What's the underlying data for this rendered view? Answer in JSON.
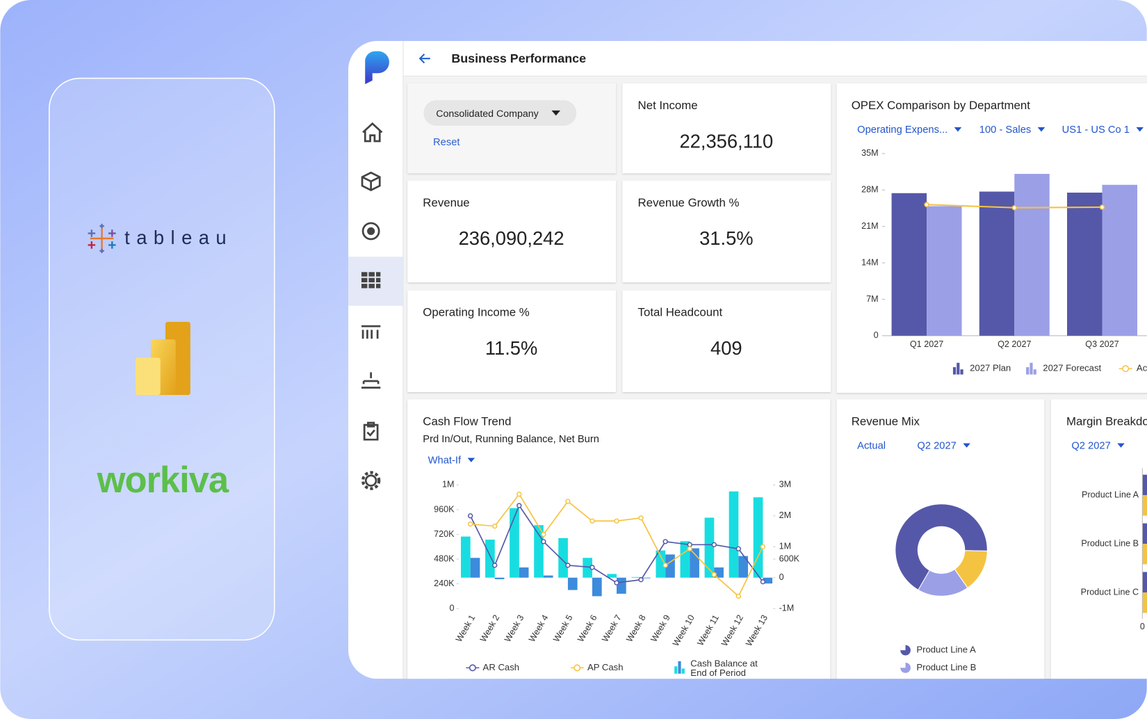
{
  "logos": {
    "tableau": "tableau",
    "workiva": "workiva"
  },
  "header": {
    "title": "Business Performance"
  },
  "filters": {
    "company": "Consolidated Company",
    "reset": "Reset"
  },
  "kpis": [
    {
      "label": "Net Income",
      "value": "22,356,110"
    },
    {
      "label": "Revenue",
      "value": "236,090,242"
    },
    {
      "label": "Revenue Growth %",
      "value": "31.5%"
    },
    {
      "label": "Operating Income %",
      "value": "11.5%"
    },
    {
      "label": "Total Headcount",
      "value": "409"
    }
  ],
  "opex": {
    "type": "bar",
    "title": "OPEX Comparison by Department",
    "filters": [
      "Operating Expens...",
      "100 - Sales",
      "US1 - US Co 1"
    ],
    "categories": [
      "Q1 2027",
      "Q2 2027",
      "Q3 2027"
    ],
    "ylim": [
      0,
      35000000
    ],
    "yticks": [
      0,
      {
        "value": 7000000,
        "label": "7M"
      },
      {
        "value": 14000000,
        "label": "14M"
      },
      {
        "value": 21000000,
        "label": "21M"
      },
      {
        "value": 28000000,
        "label": "28M"
      },
      {
        "value": 35000000,
        "label": "35M"
      }
    ],
    "series": [
      {
        "name": "2027 Plan",
        "type": "bar",
        "color": "#5558a8",
        "values": [
          27400000,
          27700000,
          27500000
        ]
      },
      {
        "name": "2027 Forecast",
        "type": "bar",
        "color": "#9b9fe6",
        "values": [
          24900000,
          31100000,
          29000000
        ]
      },
      {
        "name": "Actual",
        "type": "line",
        "color": "#f5c342",
        "values": [
          25200000,
          24600000,
          24700000
        ]
      }
    ]
  },
  "cash_flow": {
    "type": "bar",
    "title": "Cash Flow Trend",
    "subtitle": "Prd In/Out, Running Balance, Net Burn",
    "filter": "What-If",
    "categories": [
      "Week 1",
      "Week 2",
      "Week 3",
      "Week 4",
      "Week 5",
      "Week 6",
      "Week 7",
      "Week 8",
      "Week 9",
      "Week 10",
      "Week 11",
      "Week 12",
      "Week 13"
    ],
    "ylim": [
      0,
      1200000
    ],
    "yticks": [
      0,
      {
        "value": 240000,
        "label": "240K"
      },
      {
        "value": 480000,
        "label": "480K"
      },
      {
        "value": 720000,
        "label": "720K"
      },
      {
        "value": 960000,
        "label": "960K"
      },
      {
        "value": 1200000,
        "label": "1M"
      }
    ],
    "y2lim": [
      -1000000,
      3000000
    ],
    "y2ticks": [
      {
        "value": -1000000,
        "label": "-1M"
      },
      0,
      {
        "value": 600000,
        "label": "600K"
      },
      {
        "value": 1000000,
        "label": "1M"
      },
      {
        "value": 2000000,
        "label": "2M"
      },
      {
        "value": 3000000,
        "label": "3M"
      }
    ],
    "series": [
      {
        "name": "Cash Balance at End of Period",
        "type": "bar",
        "axis": "y2",
        "color": "#18dde0",
        "values": [
          1330000,
          1230000,
          2250000,
          1700000,
          1280000,
          640000,
          120000,
          20000,
          880000,
          1180000,
          1940000,
          2790000,
          2600000
        ]
      },
      {
        "type": "bar",
        "axis": "y2",
        "color": "#3d8bdc",
        "values": [
          640000,
          -50000,
          330000,
          70000,
          -400000,
          -600000,
          -520000,
          -20000,
          750000,
          950000,
          330000,
          700000,
          -190000
        ]
      },
      {
        "name": "AR Cash",
        "type": "line",
        "color": "#5558a8",
        "values": [
          900000,
          420000,
          1000000,
          650000,
          420000,
          400000,
          250000,
          280000,
          650000,
          620000,
          620000,
          580000,
          260000
        ]
      },
      {
        "name": "AP Cash",
        "type": "line",
        "color": "#f5c342",
        "values": [
          820000,
          800000,
          1110000,
          720000,
          1040000,
          850000,
          850000,
          880000,
          420000,
          580000,
          330000,
          120000,
          600000
        ]
      }
    ]
  },
  "revenue_mix": {
    "type": "pie",
    "title": "Revenue Mix",
    "filters": [
      "Actual",
      "Q2 2027"
    ],
    "categories": [
      "Product Line A",
      null,
      "Product Line B"
    ],
    "values": [
      67,
      15,
      18
    ],
    "colors": [
      "#5558a8",
      "#f5c342",
      "#9b9fe6"
    ]
  },
  "margin": {
    "type": "bar",
    "title": "Margin Breakdown",
    "filters": [
      "Q2 2027"
    ],
    "categories": [
      "Product Line A",
      "Product Line B",
      "Product Line C"
    ],
    "xticks": [
      0
    ]
  }
}
